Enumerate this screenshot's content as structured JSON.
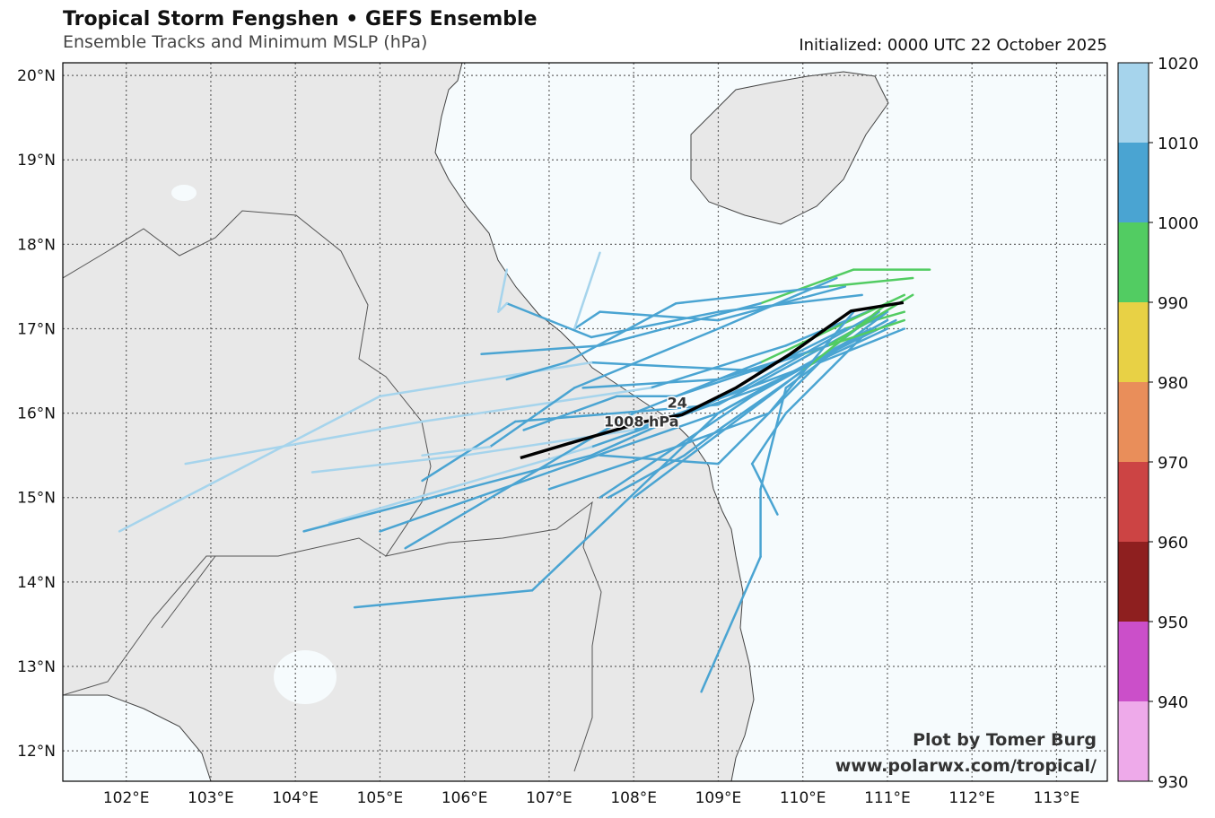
{
  "header": {
    "title": "Tropical Storm Fengshen • GEFS Ensemble",
    "subtitle": "Ensemble Tracks and Minimum MSLP (hPa)",
    "initialized": "Initialized: 0000 UTC 22 October 2025"
  },
  "credits": {
    "line1": "Plot by Tomer Burg",
    "line2": "www.polarwx.com/tropical/"
  },
  "annotation": {
    "hour": "24",
    "pressure": "1008 hPa",
    "lon": 108.6,
    "lat": 16.0
  },
  "colors": {
    "land": "#e8e8e8",
    "ocean": "#f6fbfd",
    "mean_track": "#000000"
  },
  "chart_data": {
    "type": "map-tracks",
    "extent": {
      "lon": [
        101.25,
        113.6
      ],
      "lat": [
        11.64,
        20.15
      ]
    },
    "xticks": [
      {
        "v": 102,
        "label": "102°E"
      },
      {
        "v": 103,
        "label": "103°E"
      },
      {
        "v": 104,
        "label": "104°E"
      },
      {
        "v": 105,
        "label": "105°E"
      },
      {
        "v": 106,
        "label": "106°E"
      },
      {
        "v": 107,
        "label": "107°E"
      },
      {
        "v": 108,
        "label": "108°E"
      },
      {
        "v": 109,
        "label": "109°E"
      },
      {
        "v": 110,
        "label": "110°E"
      },
      {
        "v": 111,
        "label": "111°E"
      },
      {
        "v": 112,
        "label": "112°E"
      },
      {
        "v": 113,
        "label": "113°E"
      }
    ],
    "yticks": [
      {
        "v": 20,
        "label": "20°N"
      },
      {
        "v": 19,
        "label": "19°N"
      },
      {
        "v": 18,
        "label": "18°N"
      },
      {
        "v": 17,
        "label": "17°N"
      },
      {
        "v": 16,
        "label": "16°N"
      },
      {
        "v": 15,
        "label": "15°N"
      },
      {
        "v": 14,
        "label": "14°N"
      },
      {
        "v": 13,
        "label": "13°N"
      },
      {
        "v": 12,
        "label": "12°N"
      }
    ],
    "colorbar": {
      "ticks": [
        "930",
        "940",
        "950",
        "960",
        "970",
        "980",
        "990",
        "1000",
        "1010",
        "1020"
      ],
      "bins": [
        {
          "min": 930,
          "max": 940,
          "color": "#eeaaea"
        },
        {
          "min": 940,
          "max": 950,
          "color": "#cb4fc9"
        },
        {
          "min": 950,
          "max": 960,
          "color": "#8e1f1f"
        },
        {
          "min": 960,
          "max": 970,
          "color": "#cc4444"
        },
        {
          "min": 970,
          "max": 980,
          "color": "#e98e5a"
        },
        {
          "min": 980,
          "max": 990,
          "color": "#e8d145"
        },
        {
          "min": 990,
          "max": 1000,
          "color": "#52cc62"
        },
        {
          "min": 1000,
          "max": 1010,
          "color": "#4aa4d2"
        },
        {
          "min": 1010,
          "max": 1020,
          "color": "#a6d4ec"
        }
      ]
    },
    "mean_track": [
      [
        111.19,
        17.31
      ],
      [
        110.57,
        17.21
      ],
      [
        109.85,
        16.7
      ],
      [
        109.21,
        16.3
      ],
      [
        108.57,
        15.98
      ],
      [
        108.13,
        15.9
      ],
      [
        107.4,
        15.69
      ],
      [
        106.66,
        15.47
      ]
    ],
    "members": [
      [
        [
          111.2,
          17.2,
          995
        ],
        [
          110.5,
          17.0,
          1003
        ],
        [
          109.5,
          16.5,
          1006
        ],
        [
          107.5,
          16.6,
          1010
        ],
        [
          105.0,
          16.2,
          1012
        ],
        [
          101.92,
          14.6,
          1013
        ]
      ],
      [
        [
          111.0,
          17.3,
          997
        ],
        [
          109.8,
          16.8,
          1004
        ],
        [
          108.2,
          16.3,
          1008
        ],
        [
          105.5,
          15.9,
          1012
        ],
        [
          102.7,
          15.4,
          1013
        ]
      ],
      [
        [
          111.1,
          17.1,
          996
        ],
        [
          109.9,
          16.5,
          1004
        ],
        [
          108.0,
          15.8,
          1009
        ],
        [
          106.0,
          15.5,
          1011
        ],
        [
          104.2,
          15.3,
          1012
        ]
      ],
      [
        [
          111.0,
          17.0,
          998
        ],
        [
          109.5,
          16.3,
          1005
        ],
        [
          107.5,
          15.6,
          1009
        ],
        [
          104.4,
          14.7,
          1012
        ]
      ],
      [
        [
          110.9,
          17.2,
          999
        ],
        [
          109.3,
          16.3,
          1005
        ],
        [
          107.5,
          15.5,
          1008
        ],
        [
          104.1,
          14.6,
          1009
        ]
      ],
      [
        [
          111.0,
          17.1,
          999
        ],
        [
          109.0,
          16.0,
          1006
        ],
        [
          106.8,
          13.9,
          1008
        ],
        [
          104.7,
          13.7,
          1009
        ]
      ],
      [
        [
          110.8,
          17.0,
          999
        ],
        [
          109.0,
          16.0,
          1005
        ],
        [
          107.0,
          15.3,
          1007
        ],
        [
          105.0,
          14.6,
          1008
        ]
      ],
      [
        [
          111.2,
          17.4,
          994
        ],
        [
          109.5,
          16.6,
          1004
        ],
        [
          108.0,
          16.0,
          1008
        ],
        [
          105.3,
          14.4,
          1009
        ]
      ],
      [
        [
          111.0,
          17.2,
          996
        ],
        [
          109.0,
          16.1,
          1005
        ],
        [
          106.6,
          15.9,
          1008
        ],
        [
          105.5,
          15.2,
          1009
        ]
      ],
      [
        [
          110.5,
          17.5,
          996
        ],
        [
          109.0,
          17.1,
          1004
        ],
        [
          107.6,
          17.2,
          1008
        ],
        [
          107.3,
          17.0,
          1010
        ],
        [
          107.6,
          17.9,
          1011
        ]
      ],
      [
        [
          110.7,
          17.4,
          997
        ],
        [
          109.0,
          17.2,
          1006
        ],
        [
          107.5,
          16.9,
          1009
        ],
        [
          106.5,
          17.3,
          1010
        ],
        [
          106.4,
          17.2,
          1010
        ],
        [
          106.5,
          17.7,
          1011
        ]
      ],
      [
        [
          111.0,
          17.2,
          998
        ],
        [
          109.8,
          16.3,
          1004
        ],
        [
          109.5,
          15.1,
          1006
        ],
        [
          109.5,
          14.3,
          1007
        ],
        [
          108.8,
          12.7,
          1008
        ]
      ],
      [
        [
          110.8,
          17.0,
          999
        ],
        [
          109.8,
          16.0,
          1004
        ],
        [
          109.4,
          15.4,
          1006
        ],
        [
          109.7,
          14.8,
          1007
        ]
      ],
      [
        [
          110.9,
          17.2,
          997
        ],
        [
          109.6,
          16.2,
          1005
        ],
        [
          108.0,
          15.0,
          1008
        ]
      ],
      [
        [
          111.0,
          17.1,
          998
        ],
        [
          109.4,
          16.2,
          1005
        ],
        [
          107.6,
          15.0,
          1008
        ]
      ],
      [
        [
          111.2,
          17.1,
          995
        ],
        [
          110.0,
          16.7,
          1003
        ],
        [
          108.5,
          16.2,
          1008
        ],
        [
          107.8,
          16.2,
          1009
        ],
        [
          106.7,
          15.8,
          1010
        ]
      ],
      [
        [
          110.4,
          17.6,
          997
        ],
        [
          109.0,
          17.0,
          1005
        ],
        [
          107.3,
          16.3,
          1009
        ],
        [
          106.3,
          15.6,
          1010
        ],
        [
          105.5,
          15.5,
          1010
        ]
      ],
      [
        [
          111.5,
          17.7,
          992
        ],
        [
          110.6,
          17.7,
          995
        ],
        [
          109.5,
          17.3,
          1004
        ],
        [
          107.6,
          16.8,
          1008
        ],
        [
          106.2,
          16.7,
          1009
        ]
      ],
      [
        [
          111.3,
          17.6,
          993
        ],
        [
          110.3,
          17.5,
          996
        ],
        [
          108.5,
          17.3,
          1005
        ],
        [
          107.2,
          16.6,
          1008
        ],
        [
          106.5,
          16.4,
          1009
        ]
      ],
      [
        [
          111.0,
          17.3,
          996
        ],
        [
          110.0,
          16.5,
          1002
        ],
        [
          109.0,
          15.8,
          1004
        ],
        [
          108.6,
          15.5,
          1006
        ],
        [
          107.7,
          15.0,
          1007
        ]
      ],
      [
        [
          110.6,
          17.2,
          998
        ],
        [
          109.6,
          16.0,
          1002
        ],
        [
          108.5,
          15.6,
          1004
        ],
        [
          107.0,
          15.1,
          1006
        ]
      ],
      [
        [
          111.2,
          17.0,
          996
        ],
        [
          110.2,
          16.6,
          1004
        ],
        [
          109.0,
          15.4,
          1009
        ],
        [
          107.6,
          15.5,
          1010
        ]
      ],
      [
        [
          111.3,
          17.4,
          993
        ],
        [
          110.3,
          16.8,
          999
        ],
        [
          109.0,
          16.4,
          1004
        ],
        [
          107.4,
          16.3,
          1008
        ]
      ]
    ]
  }
}
